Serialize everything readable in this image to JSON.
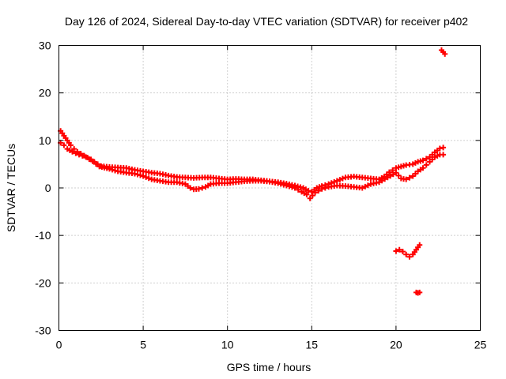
{
  "chart_data": {
    "type": "scatter",
    "title": "Day 126 of 2024, Sidereal Day-to-day VTEC variation (SDTVAR) for receiver p402",
    "xlabel": "GPS time / hours",
    "ylabel": "SDTVAR / TECUs",
    "xlim": [
      0,
      25
    ],
    "ylim": [
      -30,
      30
    ],
    "xticks": [
      0,
      5,
      10,
      15,
      20,
      25
    ],
    "yticks": [
      -30,
      -20,
      -10,
      0,
      10,
      20,
      30
    ],
    "grid": true,
    "marker": "plus",
    "color": "#ff0000",
    "series": [
      {
        "name": "main track upper",
        "x": [
          0.1,
          0.3,
          0.5,
          0.7,
          0.9,
          1.1,
          1.3,
          1.5,
          1.7,
          1.9,
          2.1,
          2.3,
          2.5,
          3.0,
          3.5,
          4.0,
          4.5,
          5.0,
          5.5,
          6.0,
          6.5,
          7.0,
          7.5,
          8.0,
          8.5,
          9.0,
          9.5,
          10.0,
          10.5,
          11.0,
          11.5,
          12.0,
          12.5,
          13.0,
          13.5,
          14.0,
          14.5,
          14.8,
          15.0,
          15.3,
          15.6,
          16.0,
          16.5,
          17.0,
          17.5,
          18.0,
          18.5,
          19.0,
          19.3,
          19.6,
          20.0,
          20.3,
          20.6,
          21.0,
          21.3,
          21.6,
          22.0,
          22.3,
          22.6,
          22.8
        ],
        "y": [
          12,
          11,
          10,
          9,
          8.2,
          7.6,
          7.2,
          6.8,
          6.4,
          6.0,
          5.5,
          5.0,
          4.6,
          4.4,
          4.3,
          4.2,
          3.8,
          3.5,
          3.2,
          3.0,
          2.6,
          2.3,
          2.2,
          2.1,
          2.2,
          2.2,
          2.0,
          1.8,
          1.9,
          1.8,
          1.8,
          1.6,
          1.4,
          1.2,
          0.9,
          0.5,
          0.0,
          -0.6,
          -0.8,
          0.0,
          0.4,
          0.8,
          1.5,
          2.2,
          2.4,
          2.2,
          2.0,
          1.8,
          2.4,
          3.3,
          4.2,
          4.5,
          4.8,
          5.0,
          5.5,
          5.8,
          6.5,
          7.5,
          8.3,
          8.5
        ]
      },
      {
        "name": "main track lower",
        "x": [
          0.1,
          0.3,
          0.5,
          0.8,
          1.2,
          1.6,
          2.0,
          2.4,
          3.0,
          3.5,
          4.0,
          4.5,
          5.0,
          5.5,
          6.0,
          6.5,
          7.0,
          7.5,
          7.8,
          8.0,
          8.3,
          8.7,
          9.0,
          9.5,
          10.0,
          10.5,
          11.0,
          11.5,
          12.0,
          12.5,
          13.0,
          13.5,
          14.0,
          14.4,
          14.7,
          14.9,
          15.2,
          15.6,
          16.0,
          16.5,
          17.0,
          17.5,
          18.0,
          18.5,
          19.0,
          19.5,
          20.0,
          20.3,
          20.6,
          21.0,
          21.3,
          21.6,
          22.0,
          22.3,
          22.6,
          22.8
        ],
        "y": [
          9.5,
          9.0,
          8.2,
          7.6,
          7.0,
          6.5,
          5.6,
          4.5,
          4.0,
          3.5,
          3.2,
          3.0,
          2.5,
          1.8,
          1.5,
          1.2,
          1.2,
          0.8,
          0.0,
          -0.3,
          -0.2,
          0.2,
          0.8,
          1.0,
          1.0,
          1.2,
          1.4,
          1.5,
          1.5,
          1.3,
          1.0,
          0.5,
          0.0,
          -0.8,
          -1.4,
          -2.2,
          -1.0,
          -0.2,
          0.2,
          0.5,
          0.4,
          0.2,
          0.0,
          0.8,
          1.2,
          2.2,
          3.2,
          2.0,
          1.8,
          2.5,
          3.5,
          4.2,
          5.5,
          6.5,
          7.0,
          7.0
        ]
      },
      {
        "name": "negative segment",
        "x": [
          20.0,
          20.2,
          20.4,
          20.6,
          20.8,
          21.0,
          21.2,
          21.4
        ],
        "y": [
          -13.3,
          -13.0,
          -13.4,
          -14.0,
          -14.5,
          -14.0,
          -13.0,
          -12.0
        ]
      },
      {
        "name": "outlier low",
        "x": [
          21.2,
          21.3,
          21.4
        ],
        "y": [
          -22.0,
          -22.1,
          -22.0
        ]
      },
      {
        "name": "outlier high",
        "x": [
          22.7,
          22.8,
          22.9
        ],
        "y": [
          29.0,
          28.6,
          28.2
        ]
      }
    ]
  }
}
